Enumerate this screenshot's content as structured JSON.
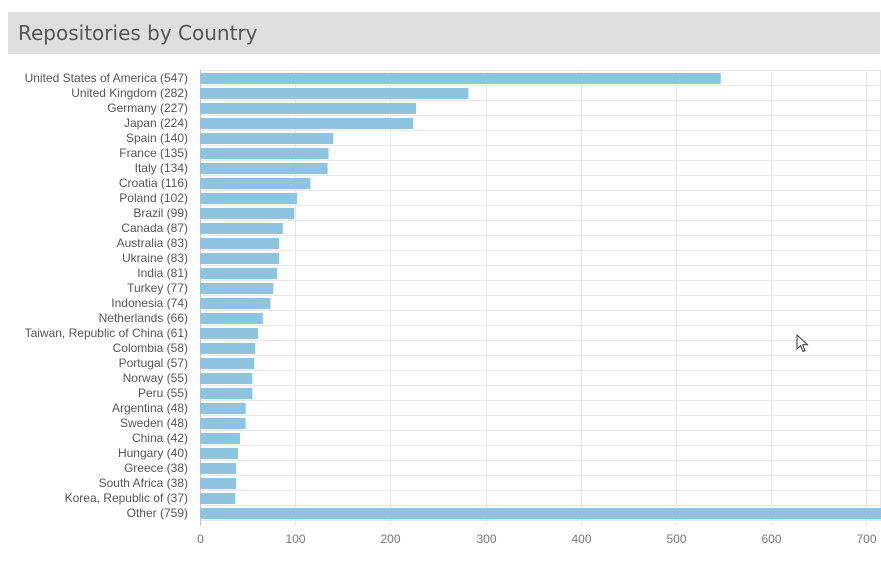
{
  "header": {
    "title": "Repositories by Country"
  },
  "colors": {
    "bar": "#8ec4e0",
    "grid": "#e6e6e6",
    "axis": "#c8c8c8",
    "header_bg": "#dedede"
  },
  "chart_data": {
    "type": "bar",
    "orientation": "horizontal",
    "title": "Repositories by Country",
    "xlabel": "",
    "ylabel": "",
    "xlim": [
      0,
      710
    ],
    "grid": true,
    "legend": "none",
    "categories": [
      "United States of America (547)",
      "United Kingdom (282)",
      "Germany (227)",
      "Japan (224)",
      "Spain (140)",
      "France (135)",
      "Italy (134)",
      "Croatia (116)",
      "Poland (102)",
      "Brazil (99)",
      "Canada (87)",
      "Australia (83)",
      "Ukraine (83)",
      "India (81)",
      "Turkey (77)",
      "Indonesia (74)",
      "Netherlands (66)",
      "Taiwan, Republic of China (61)",
      "Colombia (58)",
      "Portugal (57)",
      "Norway (55)",
      "Peru (55)",
      "Argentina (48)",
      "Sweden (48)",
      "China (42)",
      "Hungary (40)",
      "Greece (38)",
      "South Africa (38)",
      "Korea, Republic of (37)",
      "Other (759)"
    ],
    "values": [
      547,
      282,
      227,
      224,
      140,
      135,
      134,
      116,
      102,
      99,
      87,
      83,
      83,
      81,
      77,
      74,
      66,
      61,
      58,
      57,
      55,
      55,
      48,
      48,
      42,
      40,
      38,
      38,
      37,
      759
    ],
    "x_ticks": [
      0,
      100,
      200,
      300,
      400,
      500,
      600,
      700
    ]
  }
}
